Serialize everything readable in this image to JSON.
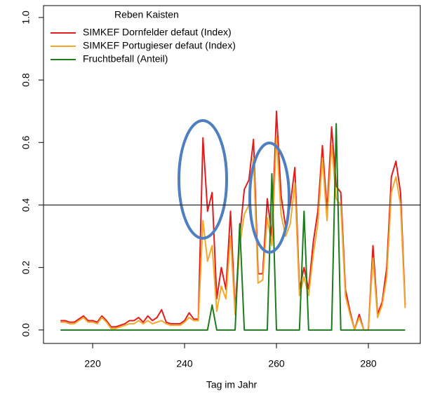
{
  "chart_data": {
    "type": "line",
    "x_label": "Tag im Jahr",
    "legend_title": "Reben Kaisten",
    "legend": "top-left",
    "hline": 0.4,
    "xlim": [
      209.3,
      291.3
    ],
    "ylim": [
      -0.043,
      1.038
    ],
    "xticks": [
      220,
      240,
      260,
      280
    ],
    "yticks": [
      {
        "value": 0,
        "label": "0.0"
      },
      0.2,
      0.4,
      0.6,
      0.8,
      {
        "value": 1,
        "label": "1.0"
      }
    ],
    "x": [
      213,
      214,
      215,
      216,
      217,
      218,
      219,
      220,
      221,
      222,
      223,
      224,
      225,
      226,
      227,
      228,
      229,
      230,
      231,
      232,
      233,
      234,
      235,
      236,
      237,
      238,
      239,
      240,
      241,
      242,
      243,
      244,
      245,
      246,
      247,
      248,
      249,
      250,
      251,
      252,
      253,
      254,
      255,
      256,
      257,
      258,
      259,
      260,
      261,
      262,
      263,
      264,
      265,
      266,
      267,
      268,
      269,
      270,
      271,
      272,
      273,
      274,
      275,
      276,
      277,
      278,
      279,
      280,
      281,
      282,
      283,
      284,
      285,
      286,
      287,
      288
    ],
    "series": [
      {
        "name": "SIMKEF Dornfelder defaut (Index)",
        "color": "#e01e1e",
        "values": [
          0.03,
          0.03,
          0.025,
          0.025,
          0.035,
          0.045,
          0.03,
          0.03,
          0.025,
          0.045,
          0.03,
          0.01,
          0.01,
          0.015,
          0.02,
          0.03,
          0.03,
          0.04,
          0.025,
          0.045,
          0.03,
          0.04,
          0.065,
          0.025,
          0.02,
          0.02,
          0.02,
          0.03,
          0.055,
          0.035,
          0.035,
          0.615,
          0.38,
          0.44,
          0.1,
          0.2,
          0.13,
          0.38,
          0.06,
          0.3,
          0.45,
          0.48,
          0.61,
          0.18,
          0.18,
          0.42,
          0.3,
          0.7,
          0.43,
          0.33,
          0.4,
          0.52,
          0.13,
          0.2,
          0.13,
          0.28,
          0.38,
          0.59,
          0.38,
          0.65,
          0.46,
          0.44,
          0.13,
          0.06,
          0,
          0.05,
          0,
          0,
          0.27,
          0.05,
          0.09,
          0.2,
          0.49,
          0.54,
          0.44,
          0.08
        ]
      },
      {
        "name": "SIMKEF Portugieser defaut (Index)",
        "color": "#f2a82c",
        "values": [
          0.025,
          0.025,
          0.02,
          0.02,
          0.03,
          0.04,
          0.025,
          0.025,
          0.02,
          0.04,
          0.025,
          0.005,
          0.005,
          0.01,
          0.015,
          0.02,
          0.02,
          0.03,
          0.02,
          0.03,
          0.02,
          0.025,
          0.03,
          0.02,
          0.015,
          0.015,
          0.015,
          0.025,
          0.04,
          0.03,
          0.03,
          0.35,
          0.22,
          0.27,
          0.06,
          0.14,
          0.1,
          0.3,
          0.05,
          0.27,
          0.37,
          0.4,
          0.55,
          0.15,
          0.16,
          0.36,
          0.27,
          0.62,
          0.37,
          0.3,
          0.34,
          0.47,
          0.11,
          0.17,
          0.11,
          0.24,
          0.34,
          0.55,
          0.35,
          0.59,
          0.42,
          0.4,
          0.11,
          0.05,
          0,
          0.04,
          0,
          0,
          0.23,
          0.04,
          0.08,
          0.17,
          0.44,
          0.49,
          0.4,
          0.07
        ]
      },
      {
        "name": "Fruchtbefall (Anteil)",
        "color": "#1d7a1d",
        "values": [
          0,
          0,
          0,
          0,
          0,
          0,
          0,
          0,
          0,
          0,
          0,
          0,
          0,
          0,
          0,
          0,
          0,
          0,
          0,
          0,
          0,
          0,
          0,
          0,
          0,
          0,
          0,
          0,
          0,
          0,
          0,
          0,
          0,
          0.08,
          0,
          0,
          0,
          0,
          0,
          0.34,
          0,
          0,
          0,
          0,
          0,
          0,
          0.5,
          0,
          0,
          0,
          0,
          0,
          0,
          0.38,
          0,
          0,
          0,
          0,
          0,
          0,
          0.66,
          0,
          0,
          0,
          0,
          0,
          0,
          0,
          0,
          0,
          0,
          0,
          0,
          0,
          0,
          0
        ]
      }
    ]
  }
}
